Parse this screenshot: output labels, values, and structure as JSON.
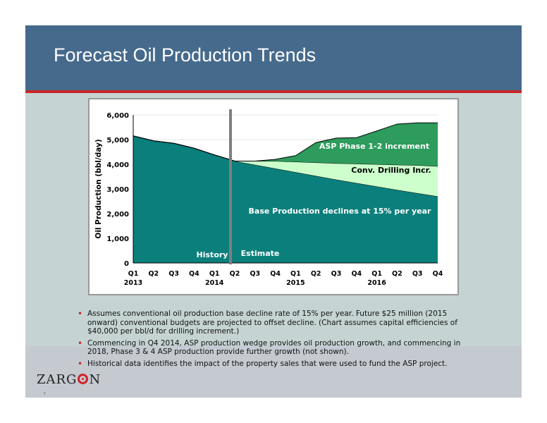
{
  "slide": {
    "title": "Forecast Oil Production Trends",
    "page_number": "5",
    "logo": {
      "text_before": "ZARG",
      "text_after": "N",
      "colors": {
        "ring": "#d2232a",
        "text": "#222222"
      }
    },
    "bullets": [
      "Assumes conventional oil production base decline rate of 15% per year. Future $25 million (2015 onward) conventional budgets are projected to offset decline. (Chart assumes capital efficiencies of $40,000 per bbl/d for drilling increment.)",
      "Commencing in Q4 2014, ASP production wedge provides oil production growth, and commencing in 2018, Phase 3 & 4 ASP production provide further growth (not shown).",
      "Historical data identifies the impact of the property sales that were used to fund the ASP project."
    ]
  },
  "chart_data": {
    "type": "area",
    "stacked": true,
    "ylabel": "Oil Production (bbl/day)",
    "ylim": [
      0,
      6000
    ],
    "yticks": [
      0,
      1000,
      2000,
      3000,
      4000,
      5000,
      6000
    ],
    "ytick_labels": [
      "0",
      "1,000",
      "2,000",
      "3,000",
      "4,000",
      "5,000",
      "6,000"
    ],
    "categories": [
      "Q1",
      "Q2",
      "Q3",
      "Q4",
      "Q1",
      "Q2",
      "Q3",
      "Q4",
      "Q1",
      "Q2",
      "Q3",
      "Q4",
      "Q1",
      "Q2",
      "Q3",
      "Q4"
    ],
    "year_labels": [
      {
        "label": "2013",
        "index": 0
      },
      {
        "label": "2014",
        "index": 4
      },
      {
        "label": "2015",
        "index": 8
      },
      {
        "label": "2016",
        "index": 12
      }
    ],
    "grid": "horizontal",
    "series": [
      {
        "name": "Base Production declines at 15% per year",
        "color": "#0b7f7b",
        "values": [
          5150,
          4950,
          4850,
          4650,
          4380,
          4130,
          3980,
          3830,
          3680,
          3530,
          3380,
          3240,
          3100,
          2960,
          2830,
          2700
        ]
      },
      {
        "name": "Conv. Drilling Incr.",
        "color": "#ccffcc",
        "values": [
          0,
          0,
          0,
          0,
          0,
          0,
          150,
          300,
          420,
          540,
          660,
          780,
          900,
          1020,
          1130,
          1220
        ]
      },
      {
        "name": "ASP Phase 1-2 increment",
        "color": "#2d9c5c",
        "values": [
          0,
          0,
          0,
          0,
          0,
          0,
          0,
          70,
          250,
          810,
          1020,
          1060,
          1350,
          1650,
          1720,
          1760
        ]
      }
    ],
    "divider": {
      "after_index": 5,
      "color": "#7f7f7f"
    },
    "annotations": [
      {
        "text": "History"
      },
      {
        "text": "Estimate"
      }
    ]
  }
}
